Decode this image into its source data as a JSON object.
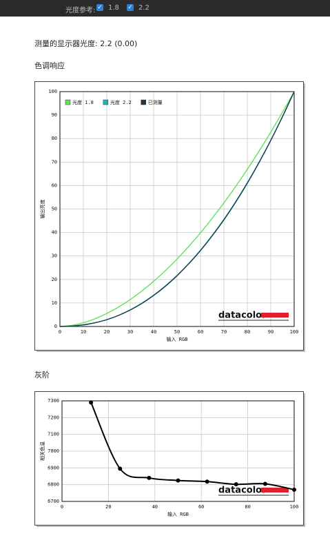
{
  "toolbar": {
    "label": "光度参考:",
    "options": [
      "1.8",
      "2.2"
    ]
  },
  "measured": "测量的显示器光度:  2.2 (0.00)",
  "sections": [
    "色调响应",
    "灰阶"
  ],
  "chart_data": [
    {
      "type": "line",
      "xlabel": "输入 RGB",
      "ylabel": "输出亮度",
      "logo": "datacolor",
      "x": [
        0,
        5,
        10,
        15,
        20,
        25,
        30,
        35,
        40,
        45,
        50,
        55,
        60,
        65,
        70,
        75,
        80,
        85,
        90,
        95,
        100
      ],
      "series": [
        {
          "name": "光度 1.8",
          "color": "#5ee35e",
          "values": [
            0,
            0.46,
            1.58,
            3.29,
            5.52,
            8.25,
            11.45,
            15.11,
            19.22,
            23.76,
            28.72,
            34.09,
            39.87,
            46.05,
            52.62,
            59.58,
            66.92,
            74.64,
            82.73,
            91.18,
            100
          ]
        },
        {
          "name": "光度 2.2",
          "color": "#1fb5b5",
          "values": [
            0,
            0.14,
            0.63,
            1.54,
            2.9,
            4.74,
            7.08,
            9.93,
            13.32,
            17.26,
            21.76,
            26.84,
            32.5,
            38.76,
            45.63,
            53.11,
            61.21,
            69.94,
            79.31,
            89.33,
            100
          ]
        },
        {
          "name": "已测量",
          "color": "#1a3a4a",
          "values": [
            0,
            0.2,
            0.7,
            1.6,
            2.9,
            4.7,
            7.0,
            9.8,
            13.2,
            17.1,
            21.6,
            26.7,
            32.3,
            38.6,
            45.4,
            52.9,
            61.0,
            69.8,
            79.2,
            89.3,
            100
          ]
        }
      ],
      "xlim": [
        0,
        100
      ],
      "xticks": [
        0,
        10,
        20,
        30,
        40,
        50,
        60,
        70,
        80,
        90,
        100
      ],
      "ylim": [
        0,
        100
      ],
      "yticks": [
        0,
        10,
        20,
        30,
        40,
        50,
        60,
        70,
        80,
        90,
        100
      ],
      "grid": true,
      "legend": "top-left"
    },
    {
      "type": "line",
      "xlabel": "输入 RGB",
      "ylabel": "相关色温",
      "logo": "datacolor",
      "x": [
        12.5,
        25,
        37.5,
        50,
        62.5,
        75,
        87.5,
        100
      ],
      "series": [
        {
          "color": "#000000",
          "markers": true,
          "values": [
            7290,
            6895,
            6840,
            6825,
            6818,
            6802,
            6805,
            6770
          ]
        }
      ],
      "xlim": [
        0,
        100
      ],
      "xticks": [
        0,
        20,
        40,
        60,
        80,
        100
      ],
      "ylim": [
        6700,
        7300
      ],
      "yticks": [
        6700,
        6800,
        6900,
        7000,
        7100,
        7200,
        7300
      ],
      "grid": true
    }
  ]
}
